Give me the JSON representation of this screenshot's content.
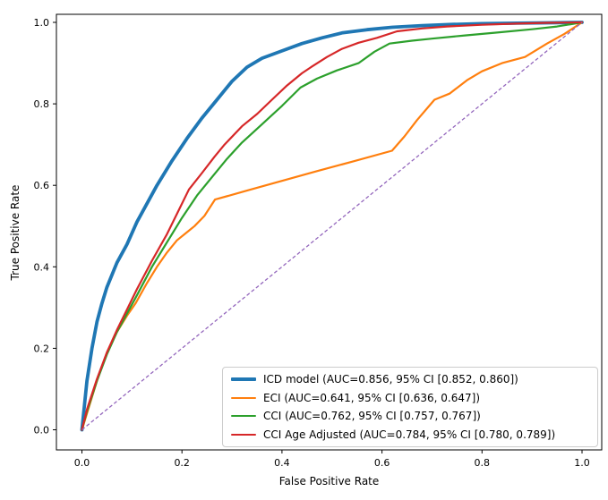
{
  "chart_data": {
    "type": "line",
    "title": "",
    "xlabel": "False Positive Rate",
    "ylabel": "True Positive Rate",
    "xlim": [
      0.0,
      1.0
    ],
    "ylim": [
      0.0,
      1.0
    ],
    "x_ticks": [
      {
        "value": 0.0,
        "label": "0.0"
      },
      {
        "value": 0.2,
        "label": "0.2"
      },
      {
        "value": 0.4,
        "label": "0.4"
      },
      {
        "value": 0.6,
        "label": "0.6"
      },
      {
        "value": 0.8,
        "label": "0.8"
      },
      {
        "value": 1.0,
        "label": "1.0"
      }
    ],
    "y_ticks": [
      {
        "value": 0.0,
        "label": "0.0"
      },
      {
        "value": 0.2,
        "label": "0.2"
      },
      {
        "value": 0.4,
        "label": "0.4"
      },
      {
        "value": 0.6,
        "label": "0.6"
      },
      {
        "value": 0.8,
        "label": "0.8"
      },
      {
        "value": 1.0,
        "label": "1.0"
      }
    ],
    "grid": false,
    "legend_position": "lower right",
    "spine_color": "#000000",
    "background_color": "#ffffff",
    "series": [
      {
        "name": "icd-model",
        "legend_label": "ICD model (AUC=0.856, 95% CI [0.852, 0.860])",
        "auc": 0.856,
        "ci_95": [
          0.852,
          0.86
        ],
        "color": "#1f77b4",
        "linewidth": 3.8,
        "line_style": "solid",
        "points": [
          [
            0,
            0
          ],
          [
            0.005,
            0.06
          ],
          [
            0.01,
            0.12
          ],
          [
            0.02,
            0.2
          ],
          [
            0.03,
            0.265
          ],
          [
            0.04,
            0.31
          ],
          [
            0.05,
            0.35
          ],
          [
            0.07,
            0.41
          ],
          [
            0.09,
            0.455
          ],
          [
            0.11,
            0.51
          ],
          [
            0.13,
            0.555
          ],
          [
            0.15,
            0.6
          ],
          [
            0.18,
            0.66
          ],
          [
            0.21,
            0.715
          ],
          [
            0.24,
            0.765
          ],
          [
            0.27,
            0.81
          ],
          [
            0.3,
            0.855
          ],
          [
            0.33,
            0.89
          ],
          [
            0.36,
            0.912
          ],
          [
            0.4,
            0.93
          ],
          [
            0.44,
            0.948
          ],
          [
            0.48,
            0.962
          ],
          [
            0.52,
            0.974
          ],
          [
            0.57,
            0.982
          ],
          [
            0.62,
            0.988
          ],
          [
            0.68,
            0.992
          ],
          [
            0.74,
            0.995
          ],
          [
            0.8,
            0.997
          ],
          [
            0.87,
            0.998
          ],
          [
            0.93,
            0.999
          ],
          [
            1,
            1
          ]
        ]
      },
      {
        "name": "eci",
        "legend_label": "ECI (AUC=0.641, 95% CI [0.636, 0.647])",
        "auc": 0.641,
        "ci_95": [
          0.636,
          0.647
        ],
        "color": "#ff7f0e",
        "linewidth": 2.2,
        "line_style": "solid",
        "points": [
          [
            0,
            0
          ],
          [
            0.01,
            0.04
          ],
          [
            0.03,
            0.12
          ],
          [
            0.05,
            0.19
          ],
          [
            0.07,
            0.24
          ],
          [
            0.09,
            0.28
          ],
          [
            0.107,
            0.31
          ],
          [
            0.13,
            0.36
          ],
          [
            0.15,
            0.4
          ],
          [
            0.17,
            0.435
          ],
          [
            0.19,
            0.465
          ],
          [
            0.21,
            0.485
          ],
          [
            0.225,
            0.5
          ],
          [
            0.245,
            0.525
          ],
          [
            0.266,
            0.565
          ],
          [
            0.33,
            0.587
          ],
          [
            0.4,
            0.611
          ],
          [
            0.47,
            0.635
          ],
          [
            0.54,
            0.658
          ],
          [
            0.62,
            0.685
          ],
          [
            0.645,
            0.72
          ],
          [
            0.67,
            0.76
          ],
          [
            0.705,
            0.81
          ],
          [
            0.735,
            0.825
          ],
          [
            0.77,
            0.858
          ],
          [
            0.8,
            0.88
          ],
          [
            0.84,
            0.9
          ],
          [
            0.886,
            0.915
          ],
          [
            0.93,
            0.948
          ],
          [
            0.965,
            0.972
          ],
          [
            1,
            1
          ]
        ]
      },
      {
        "name": "cci",
        "legend_label": "CCI (AUC=0.762, 95% CI [0.757, 0.767])",
        "auc": 0.762,
        "ci_95": [
          0.757,
          0.767
        ],
        "color": "#2ca02c",
        "linewidth": 2.2,
        "line_style": "solid",
        "points": [
          [
            0,
            0
          ],
          [
            0.01,
            0.045
          ],
          [
            0.03,
            0.12
          ],
          [
            0.05,
            0.185
          ],
          [
            0.07,
            0.24
          ],
          [
            0.09,
            0.285
          ],
          [
            0.11,
            0.33
          ],
          [
            0.14,
            0.4
          ],
          [
            0.17,
            0.46
          ],
          [
            0.2,
            0.52
          ],
          [
            0.23,
            0.575
          ],
          [
            0.26,
            0.62
          ],
          [
            0.29,
            0.665
          ],
          [
            0.32,
            0.705
          ],
          [
            0.36,
            0.75
          ],
          [
            0.4,
            0.795
          ],
          [
            0.437,
            0.84
          ],
          [
            0.47,
            0.862
          ],
          [
            0.51,
            0.882
          ],
          [
            0.553,
            0.9
          ],
          [
            0.585,
            0.928
          ],
          [
            0.615,
            0.948
          ],
          [
            0.66,
            0.955
          ],
          [
            0.7,
            0.96
          ],
          [
            0.766,
            0.968
          ],
          [
            0.83,
            0.975
          ],
          [
            0.9,
            0.983
          ],
          [
            0.95,
            0.99
          ],
          [
            1,
            1
          ]
        ]
      },
      {
        "name": "cci-age-adjusted",
        "legend_label": "CCI Age Adjusted (AUC=0.784, 95% CI [0.780, 0.789])",
        "auc": 0.784,
        "ci_95": [
          0.78,
          0.789
        ],
        "color": "#d62728",
        "linewidth": 2.2,
        "line_style": "solid",
        "points": [
          [
            0,
            0
          ],
          [
            0.01,
            0.05
          ],
          [
            0.03,
            0.125
          ],
          [
            0.05,
            0.19
          ],
          [
            0.07,
            0.245
          ],
          [
            0.09,
            0.295
          ],
          [
            0.11,
            0.345
          ],
          [
            0.14,
            0.415
          ],
          [
            0.17,
            0.48
          ],
          [
            0.19,
            0.53
          ],
          [
            0.214,
            0.59
          ],
          [
            0.24,
            0.63
          ],
          [
            0.265,
            0.67
          ],
          [
            0.285,
            0.7
          ],
          [
            0.32,
            0.745
          ],
          [
            0.35,
            0.775
          ],
          [
            0.38,
            0.81
          ],
          [
            0.41,
            0.845
          ],
          [
            0.44,
            0.875
          ],
          [
            0.458,
            0.89
          ],
          [
            0.49,
            0.915
          ],
          [
            0.52,
            0.935
          ],
          [
            0.553,
            0.95
          ],
          [
            0.59,
            0.962
          ],
          [
            0.63,
            0.978
          ],
          [
            0.68,
            0.985
          ],
          [
            0.73,
            0.99
          ],
          [
            0.8,
            0.994
          ],
          [
            0.87,
            0.997
          ],
          [
            0.93,
            0.999
          ],
          [
            1,
            1
          ]
        ]
      }
    ],
    "reference_line": {
      "name": "chance-diagonal",
      "color": "#9467bd",
      "linewidth": 1.3,
      "line_style": "dashed",
      "points": [
        [
          0,
          0
        ],
        [
          1,
          1
        ]
      ]
    }
  }
}
